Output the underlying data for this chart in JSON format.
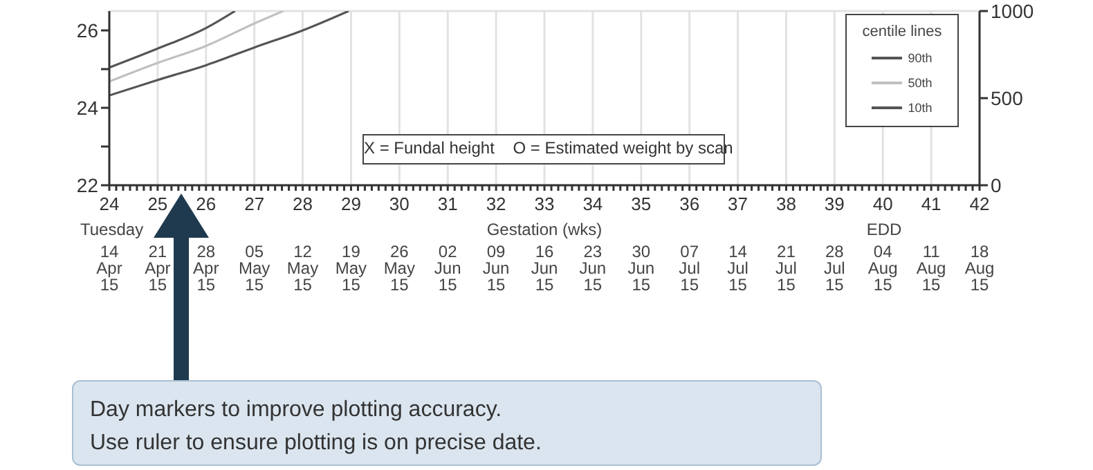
{
  "chart_data": {
    "type": "line",
    "xlabel": "Gestation (wks)",
    "xlim": [
      24,
      42
    ],
    "xticks": [
      24,
      {
        "value": 24.143,
        "label": null
      },
      {
        "value": 24.286,
        "label": null
      },
      {
        "value": 24.429,
        "label": null
      },
      {
        "value": 24.571,
        "label": null
      },
      {
        "value": 24.714,
        "label": null
      },
      {
        "value": 24.857,
        "label": null
      },
      25,
      {
        "value": 25.143,
        "label": null
      },
      {
        "value": 25.286,
        "label": null
      },
      {
        "value": 25.429,
        "label": null
      },
      {
        "value": 25.571,
        "label": null
      },
      {
        "value": 25.714,
        "label": null
      },
      {
        "value": 25.857,
        "label": null
      },
      26,
      {
        "value": 26.143,
        "label": null
      },
      {
        "value": 26.286,
        "label": null
      },
      {
        "value": 26.429,
        "label": null
      },
      {
        "value": 26.571,
        "label": null
      },
      {
        "value": 26.714,
        "label": null
      },
      {
        "value": 26.857,
        "label": null
      },
      27,
      {
        "value": 27.143,
        "label": null
      },
      {
        "value": 27.286,
        "label": null
      },
      {
        "value": 27.429,
        "label": null
      },
      {
        "value": 27.571,
        "label": null
      },
      {
        "value": 27.714,
        "label": null
      },
      {
        "value": 27.857,
        "label": null
      },
      28,
      {
        "value": 28.143,
        "label": null
      },
      {
        "value": 28.286,
        "label": null
      },
      {
        "value": 28.429,
        "label": null
      },
      {
        "value": 28.571,
        "label": null
      },
      {
        "value": 28.714,
        "label": null
      },
      {
        "value": 28.857,
        "label": null
      },
      29,
      {
        "value": 29.143,
        "label": null
      },
      {
        "value": 29.286,
        "label": null
      },
      {
        "value": 29.429,
        "label": null
      },
      {
        "value": 29.571,
        "label": null
      },
      {
        "value": 29.714,
        "label": null
      },
      {
        "value": 29.857,
        "label": null
      },
      30,
      {
        "value": 30.143,
        "label": null
      },
      {
        "value": 30.286,
        "label": null
      },
      {
        "value": 30.429,
        "label": null
      },
      {
        "value": 30.571,
        "label": null
      },
      {
        "value": 30.714,
        "label": null
      },
      {
        "value": 30.857,
        "label": null
      },
      31,
      {
        "value": 31.143,
        "label": null
      },
      {
        "value": 31.286,
        "label": null
      },
      {
        "value": 31.429,
        "label": null
      },
      {
        "value": 31.571,
        "label": null
      },
      {
        "value": 31.714,
        "label": null
      },
      {
        "value": 31.857,
        "label": null
      },
      32,
      {
        "value": 32.143,
        "label": null
      },
      {
        "value": 32.286,
        "label": null
      },
      {
        "value": 32.429,
        "label": null
      },
      {
        "value": 32.571,
        "label": null
      },
      {
        "value": 32.714,
        "label": null
      },
      {
        "value": 32.857,
        "label": null
      },
      33,
      {
        "value": 33.143,
        "label": null
      },
      {
        "value": 33.286,
        "label": null
      },
      {
        "value": 33.429,
        "label": null
      },
      {
        "value": 33.571,
        "label": null
      },
      {
        "value": 33.714,
        "label": null
      },
      {
        "value": 33.857,
        "label": null
      },
      34,
      {
        "value": 34.143,
        "label": null
      },
      {
        "value": 34.286,
        "label": null
      },
      {
        "value": 34.429,
        "label": null
      },
      {
        "value": 34.571,
        "label": null
      },
      {
        "value": 34.714,
        "label": null
      },
      {
        "value": 34.857,
        "label": null
      },
      35,
      {
        "value": 35.143,
        "label": null
      },
      {
        "value": 35.286,
        "label": null
      },
      {
        "value": 35.429,
        "label": null
      },
      {
        "value": 35.571,
        "label": null
      },
      {
        "value": 35.714,
        "label": null
      },
      {
        "value": 35.857,
        "label": null
      },
      36,
      {
        "value": 36.143,
        "label": null
      },
      {
        "value": 36.286,
        "label": null
      },
      {
        "value": 36.429,
        "label": null
      },
      {
        "value": 36.571,
        "label": null
      },
      {
        "value": 36.714,
        "label": null
      },
      {
        "value": 36.857,
        "label": null
      },
      37,
      {
        "value": 37.143,
        "label": null
      },
      {
        "value": 37.286,
        "label": null
      },
      {
        "value": 37.429,
        "label": null
      },
      {
        "value": 37.571,
        "label": null
      },
      {
        "value": 37.714,
        "label": null
      },
      {
        "value": 37.857,
        "label": null
      },
      38,
      {
        "value": 38.143,
        "label": null
      },
      {
        "value": 38.286,
        "label": null
      },
      {
        "value": 38.429,
        "label": null
      },
      {
        "value": 38.571,
        "label": null
      },
      {
        "value": 38.714,
        "label": null
      },
      {
        "value": 38.857,
        "label": null
      },
      39,
      {
        "value": 39.143,
        "label": null
      },
      {
        "value": 39.286,
        "label": null
      },
      {
        "value": 39.429,
        "label": null
      },
      {
        "value": 39.571,
        "label": null
      },
      {
        "value": 39.714,
        "label": null
      },
      {
        "value": 39.857,
        "label": null
      },
      40,
      {
        "value": 40.143,
        "label": null
      },
      {
        "value": 40.286,
        "label": null
      },
      {
        "value": 40.429,
        "label": null
      },
      {
        "value": 40.571,
        "label": null
      },
      {
        "value": 40.714,
        "label": null
      },
      {
        "value": 40.857,
        "label": null
      },
      41,
      {
        "value": 41.143,
        "label": null
      },
      {
        "value": 41.286,
        "label": null
      },
      {
        "value": 41.429,
        "label": null
      },
      {
        "value": 41.571,
        "label": null
      },
      {
        "value": 41.714,
        "label": null
      },
      {
        "value": 41.857,
        "label": null
      },
      42
    ],
    "ylim": [
      22,
      26.5
    ],
    "yticks": [
      22,
      {
        "value": 23,
        "label": null
      },
      24,
      {
        "value": 25,
        "label": null
      },
      26
    ],
    "y2lim": [
      0,
      1000
    ],
    "y2ticks": [
      0,
      500,
      1000
    ],
    "grid": true,
    "legend": "top right",
    "legend_title": "centile lines",
    "series": [
      {
        "name": "90th",
        "color": "#555555",
        "x": [
          24,
          25,
          26,
          26.6
        ],
        "values": [
          25.04,
          25.53,
          26.06,
          26.5
        ]
      },
      {
        "name": "50th",
        "color": "#c0c0c0",
        "x": [
          24,
          25,
          26,
          27,
          27.6
        ],
        "values": [
          24.68,
          25.16,
          25.6,
          26.18,
          26.5
        ]
      },
      {
        "name": "10th",
        "color": "#555555",
        "x": [
          24,
          25,
          26,
          27,
          28,
          28.95
        ],
        "values": [
          24.32,
          24.72,
          25.1,
          25.56,
          26.0,
          26.5
        ]
      }
    ],
    "annotations": [
      "X = Fundal height    O = Estimated weight by scan",
      "Tuesday",
      "EDD",
      "14 Apr 15",
      "21 Apr 15",
      "28 Apr 15",
      "05 May 15",
      "12 May 15",
      "19 May 15",
      "26 May 15",
      "02 Jun 15",
      "09 Jun 15",
      "16 Jun 15",
      "23 Jun 15",
      "30 Jun 15",
      "07 Jul 15",
      "14 Jul 15",
      "21 Jul 15",
      "28 Jul 15",
      "04 Aug 15",
      "11 Aug 15",
      "18 Aug 15",
      "Day markers to improve plotting accuracy.",
      "Use ruler to ensure plotting is on precise date."
    ]
  }
}
